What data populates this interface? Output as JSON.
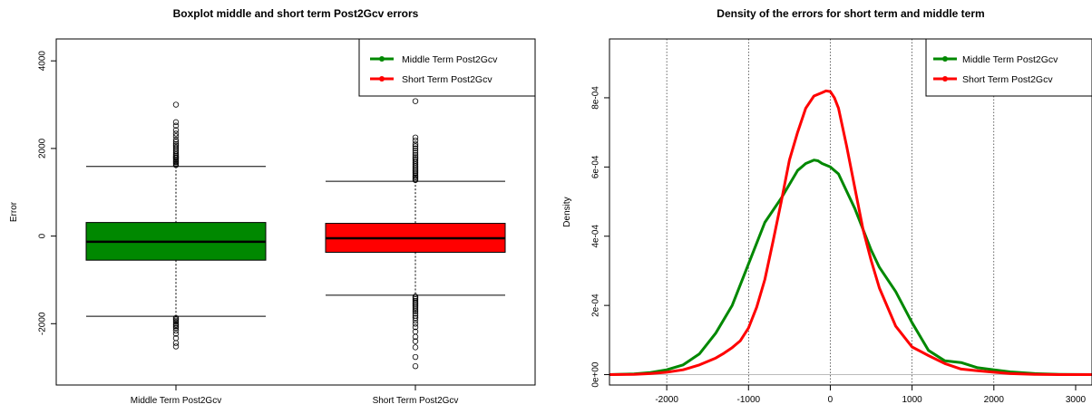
{
  "chart_data": [
    {
      "type": "boxplot",
      "title": "Boxplot middle and short term Post2Gcv errors",
      "xlabel": "",
      "ylabel": "Error",
      "ylim": [
        -3400,
        4500
      ],
      "yticks": [
        -2000,
        0,
        2000,
        4000
      ],
      "categories": [
        "Middle Term Post2Gcv",
        "Short Term Post2Gcv"
      ],
      "boxes": [
        {
          "name": "Middle Term Post2Gcv",
          "color": "#008800",
          "whisker_low": -1830,
          "q1": -550,
          "median": -130,
          "q3": 310,
          "whisker_high": 1590,
          "outliers": [
            1620,
            1650,
            1680,
            1700,
            1720,
            1750,
            1780,
            1800,
            1830,
            1860,
            1900,
            1940,
            1980,
            2020,
            2060,
            2100,
            2150,
            2200,
            2280,
            2340,
            2420,
            2520,
            2600,
            3000,
            -1870,
            -1900,
            -1930,
            -1960,
            -2000,
            -2030,
            -2060,
            -2100,
            -2160,
            -2230,
            -2330,
            -2440,
            -2520
          ]
        },
        {
          "name": "Short Term Post2Gcv",
          "color": "#ff0000",
          "whisker_low": -1350,
          "q1": -370,
          "median": -50,
          "q3": 290,
          "whisker_high": 1250,
          "outliers": [
            1280,
            1310,
            1340,
            1370,
            1400,
            1440,
            1480,
            1520,
            1560,
            1600,
            1640,
            1680,
            1720,
            1760,
            1800,
            1850,
            1900,
            1950,
            2000,
            2050,
            2100,
            2180,
            2250,
            3080,
            -1380,
            -1410,
            -1440,
            -1480,
            -1520,
            -1560,
            -1600,
            -1640,
            -1680,
            -1720,
            -1770,
            -1820,
            -1870,
            -1930,
            -2000,
            -2080,
            -2180,
            -2300,
            -2400,
            -2540,
            -2760,
            -2970
          ]
        }
      ],
      "legend": {
        "position": "top-right",
        "entries": [
          "Middle Term Post2Gcv",
          "Short Term Post2Gcv"
        ]
      }
    },
    {
      "type": "line",
      "title": "Density of the errors for short term and middle term",
      "xlabel": "",
      "ylabel": "Density",
      "xlim": [
        -2700,
        3200
      ],
      "ylim": [
        -3e-05,
        0.00097
      ],
      "xticks": [
        -2000,
        -1000,
        0,
        1000,
        2000,
        3000
      ],
      "xtick_labels": [
        "-2000",
        "-1000",
        "0",
        "1000",
        "2000",
        "3000"
      ],
      "yticks": [
        0,
        0.0002,
        0.0004,
        0.0006,
        0.0008
      ],
      "ytick_labels": [
        "0e+00",
        "2e-04",
        "4e-04",
        "6e-04",
        "8e-04"
      ],
      "vgrid": [
        -2000,
        -1000,
        0,
        1000,
        2000
      ],
      "legend": {
        "position": "top-right",
        "entries": [
          "Middle Term Post2Gcv",
          "Short Term Post2Gcv"
        ]
      },
      "series": [
        {
          "name": "Middle Term Post2Gcv",
          "color": "#008800",
          "x": [
            -2700,
            -2400,
            -2200,
            -2000,
            -1800,
            -1600,
            -1400,
            -1200,
            -1000,
            -800,
            -600,
            -400,
            -300,
            -200,
            -150,
            -100,
            0,
            100,
            200,
            300,
            400,
            500,
            600,
            800,
            1000,
            1200,
            1400,
            1600,
            1800,
            2000,
            2200,
            2500,
            2800,
            3200
          ],
          "y": [
            0,
            2e-06,
            6e-06,
            1.4e-05,
            2.8e-05,
            6e-05,
            0.00012,
            0.0002,
            0.00032,
            0.00044,
            0.00051,
            0.00059,
            0.00061,
            0.00062,
            0.000618,
            0.00061,
            0.0006,
            0.00058,
            0.00053,
            0.00048,
            0.00042,
            0.00036,
            0.00031,
            0.00024,
            0.00015,
            7e-05,
            4e-05,
            3.5e-05,
            2e-05,
            1.4e-05,
            8e-06,
            3e-06,
            1e-06,
            0
          ]
        },
        {
          "name": "Short Term Post2Gcv",
          "color": "#ff0000",
          "x": [
            -2700,
            -2400,
            -2200,
            -2000,
            -1800,
            -1600,
            -1400,
            -1300,
            -1200,
            -1100,
            -1000,
            -900,
            -800,
            -700,
            -600,
            -500,
            -400,
            -300,
            -200,
            -150,
            -100,
            -50,
            0,
            50,
            100,
            200,
            300,
            400,
            500,
            600,
            800,
            1000,
            1200,
            1400,
            1600,
            1800,
            2000,
            2200,
            2500,
            2800,
            3200
          ],
          "y": [
            0,
            1e-06,
            3e-06,
            7e-06,
            1.4e-05,
            2.8e-05,
            4.8e-05,
            6.2e-05,
            7.8e-05,
            9.8e-05,
            0.000135,
            0.000195,
            0.000275,
            0.000385,
            0.0005,
            0.00062,
            0.0007,
            0.00077,
            0.000805,
            0.00081,
            0.000815,
            0.00082,
            0.000818,
            0.0008,
            0.00077,
            0.00066,
            0.00054,
            0.00042,
            0.00033,
            0.00025,
            0.00014,
            8e-05,
            5.5e-05,
            3.2e-05,
            1.6e-05,
            1.1e-05,
            7e-06,
            3e-06,
            1e-06,
            0,
            0
          ]
        }
      ]
    }
  ]
}
